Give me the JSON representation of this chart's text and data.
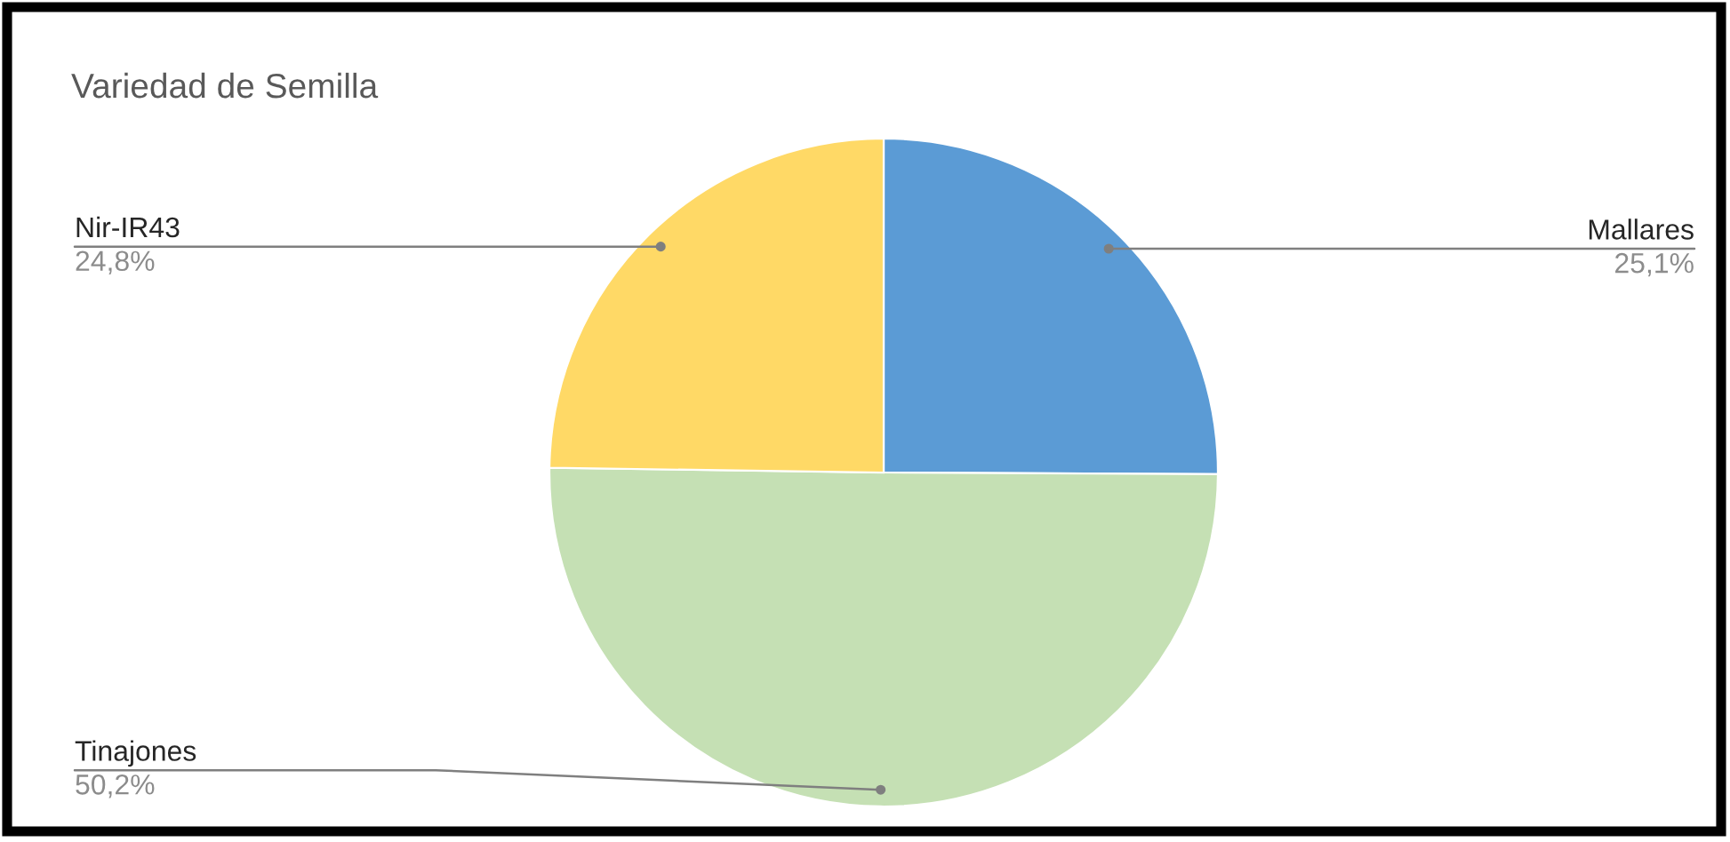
{
  "chart_data": {
    "type": "pie",
    "title": "Variedad de Semilla",
    "categories": [
      "Mallares",
      "Tinajones",
      "Nir-IR43"
    ],
    "values": [
      25.1,
      50.2,
      24.8
    ],
    "colors": [
      "#5b9bd5",
      "#c5e0b4",
      "#ffd966"
    ],
    "value_labels": [
      "25,1%",
      "50,2%",
      "24,8%"
    ],
    "legend": false
  }
}
